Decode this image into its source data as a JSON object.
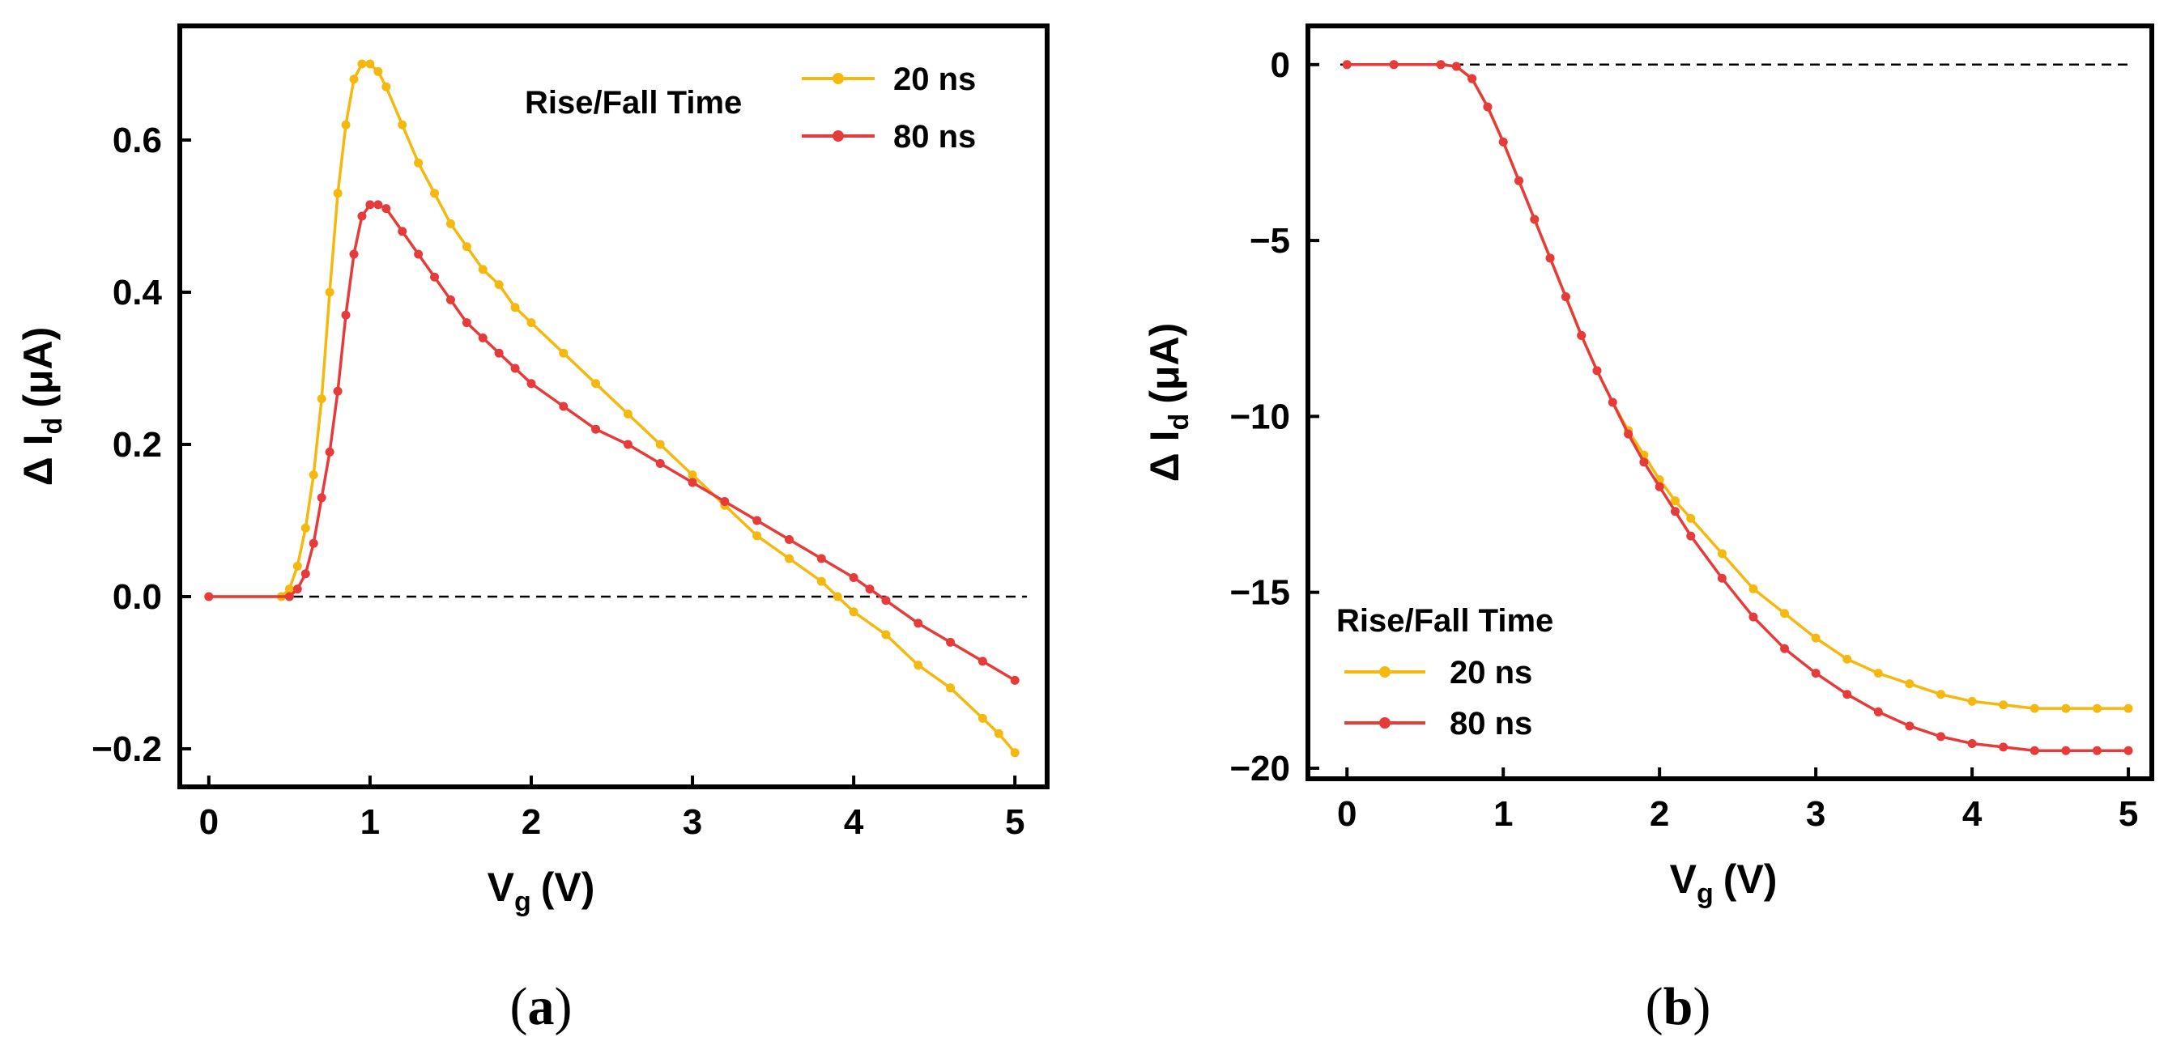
{
  "chart_data": [
    {
      "type": "line",
      "panel": "(a)",
      "panel_letter": "a",
      "xlabel": "V",
      "xlabel_sub": "g",
      "xlabel_unit": "(V)",
      "ylabel_prefix": "Δ I",
      "ylabel_sub": "d",
      "ylabel_unit": "(μA)",
      "xlim": [
        -0.18,
        5.2
      ],
      "ylim": [
        -0.25,
        0.75
      ],
      "xticks": [
        0,
        1,
        2,
        3,
        4,
        5
      ],
      "xtick_labels": [
        "0",
        "1",
        "2",
        "3",
        "4",
        "5"
      ],
      "yticks": [
        -0.2,
        0.0,
        0.2,
        0.4,
        0.6
      ],
      "ytick_labels": [
        "−0.2",
        "0.0",
        "0.2",
        "0.4",
        "0.6"
      ],
      "reference_line_y": 0,
      "legend": {
        "title": "Rise/Fall Time",
        "position": "top-right"
      },
      "series": [
        {
          "name": "20 ns",
          "color": "#F5B80F",
          "x": [
            0,
            0.45,
            0.5,
            0.55,
            0.6,
            0.65,
            0.7,
            0.75,
            0.8,
            0.85,
            0.9,
            0.95,
            1.0,
            1.05,
            1.1,
            1.2,
            1.3,
            1.4,
            1.5,
            1.6,
            1.7,
            1.8,
            1.9,
            2.0,
            2.2,
            2.4,
            2.6,
            2.8,
            3.0,
            3.2,
            3.4,
            3.6,
            3.8,
            3.9,
            4.0,
            4.2,
            4.4,
            4.6,
            4.8,
            4.9,
            5.0
          ],
          "y": [
            0,
            0.0,
            0.01,
            0.04,
            0.09,
            0.16,
            0.26,
            0.4,
            0.53,
            0.62,
            0.68,
            0.7,
            0.7,
            0.69,
            0.67,
            0.62,
            0.57,
            0.53,
            0.49,
            0.46,
            0.43,
            0.41,
            0.38,
            0.36,
            0.32,
            0.28,
            0.24,
            0.2,
            0.16,
            0.12,
            0.08,
            0.05,
            0.02,
            0.0,
            -0.02,
            -0.05,
            -0.09,
            -0.12,
            -0.16,
            -0.18,
            -0.205
          ]
        },
        {
          "name": "80 ns",
          "color": "#E63B3B",
          "x": [
            0,
            0.5,
            0.55,
            0.6,
            0.65,
            0.7,
            0.75,
            0.8,
            0.85,
            0.9,
            0.95,
            1.0,
            1.05,
            1.1,
            1.2,
            1.3,
            1.4,
            1.5,
            1.6,
            1.7,
            1.8,
            1.9,
            2.0,
            2.2,
            2.4,
            2.6,
            2.8,
            3.0,
            3.2,
            3.4,
            3.6,
            3.8,
            4.0,
            4.1,
            4.2,
            4.4,
            4.6,
            4.8,
            5.0
          ],
          "y": [
            0,
            0.0,
            0.01,
            0.03,
            0.07,
            0.13,
            0.19,
            0.27,
            0.37,
            0.45,
            0.5,
            0.515,
            0.515,
            0.51,
            0.48,
            0.45,
            0.42,
            0.39,
            0.36,
            0.34,
            0.32,
            0.3,
            0.28,
            0.25,
            0.22,
            0.2,
            0.175,
            0.15,
            0.125,
            0.1,
            0.075,
            0.05,
            0.025,
            0.01,
            -0.005,
            -0.035,
            -0.06,
            -0.085,
            -0.11
          ]
        }
      ]
    },
    {
      "type": "line",
      "panel": "(b)",
      "panel_letter": "b",
      "xlabel": "V",
      "xlabel_sub": "g",
      "xlabel_unit": "(V)",
      "ylabel_prefix": "Δ I",
      "ylabel_sub": "d",
      "ylabel_unit": "(μA)",
      "xlim": [
        -0.25,
        5.15
      ],
      "ylim": [
        -20.3,
        1.1
      ],
      "xticks": [
        0,
        1,
        2,
        3,
        4,
        5
      ],
      "xtick_labels": [
        "0",
        "1",
        "2",
        "3",
        "4",
        "5"
      ],
      "yticks": [
        0,
        -5,
        -10,
        -15,
        -20
      ],
      "ytick_labels": [
        "0",
        "−5",
        "−10",
        "−15",
        "−20"
      ],
      "reference_line_y": 0,
      "legend": {
        "title": "Rise/Fall Time",
        "position": "bottom-left"
      },
      "series": [
        {
          "name": "20 ns",
          "color": "#F5B80F",
          "x": [
            0,
            0.3,
            0.6,
            0.7,
            0.8,
            0.9,
            1.0,
            1.1,
            1.2,
            1.3,
            1.4,
            1.5,
            1.6,
            1.7,
            1.8,
            1.9,
            2.0,
            2.1,
            2.2,
            2.4,
            2.6,
            2.8,
            3.0,
            3.2,
            3.4,
            3.6,
            3.8,
            4.0,
            4.2,
            4.4,
            4.6,
            4.8,
            5.0
          ],
          "y": [
            0,
            0,
            0,
            -0.05,
            -0.4,
            -1.2,
            -2.2,
            -3.3,
            -4.4,
            -5.5,
            -6.6,
            -7.7,
            -8.7,
            -9.6,
            -10.4,
            -11.1,
            -11.8,
            -12.4,
            -12.9,
            -13.9,
            -14.9,
            -15.6,
            -16.3,
            -16.9,
            -17.3,
            -17.6,
            -17.9,
            -18.1,
            -18.2,
            -18.3,
            -18.3,
            -18.3,
            -18.3
          ]
        },
        {
          "name": "80 ns",
          "color": "#E63B3B",
          "x": [
            0,
            0.3,
            0.6,
            0.7,
            0.8,
            0.9,
            1.0,
            1.1,
            1.2,
            1.3,
            1.4,
            1.5,
            1.6,
            1.7,
            1.8,
            1.9,
            2.0,
            2.1,
            2.2,
            2.4,
            2.6,
            2.8,
            3.0,
            3.2,
            3.4,
            3.6,
            3.8,
            4.0,
            4.2,
            4.4,
            4.6,
            4.8,
            5.0
          ],
          "y": [
            0,
            0,
            0,
            -0.05,
            -0.4,
            -1.2,
            -2.2,
            -3.3,
            -4.4,
            -5.5,
            -6.6,
            -7.7,
            -8.7,
            -9.6,
            -10.5,
            -11.3,
            -12.0,
            -12.7,
            -13.4,
            -14.6,
            -15.7,
            -16.6,
            -17.3,
            -17.9,
            -18.4,
            -18.8,
            -19.1,
            -19.3,
            -19.4,
            -19.5,
            -19.5,
            -19.5,
            -19.5
          ]
        }
      ]
    }
  ]
}
